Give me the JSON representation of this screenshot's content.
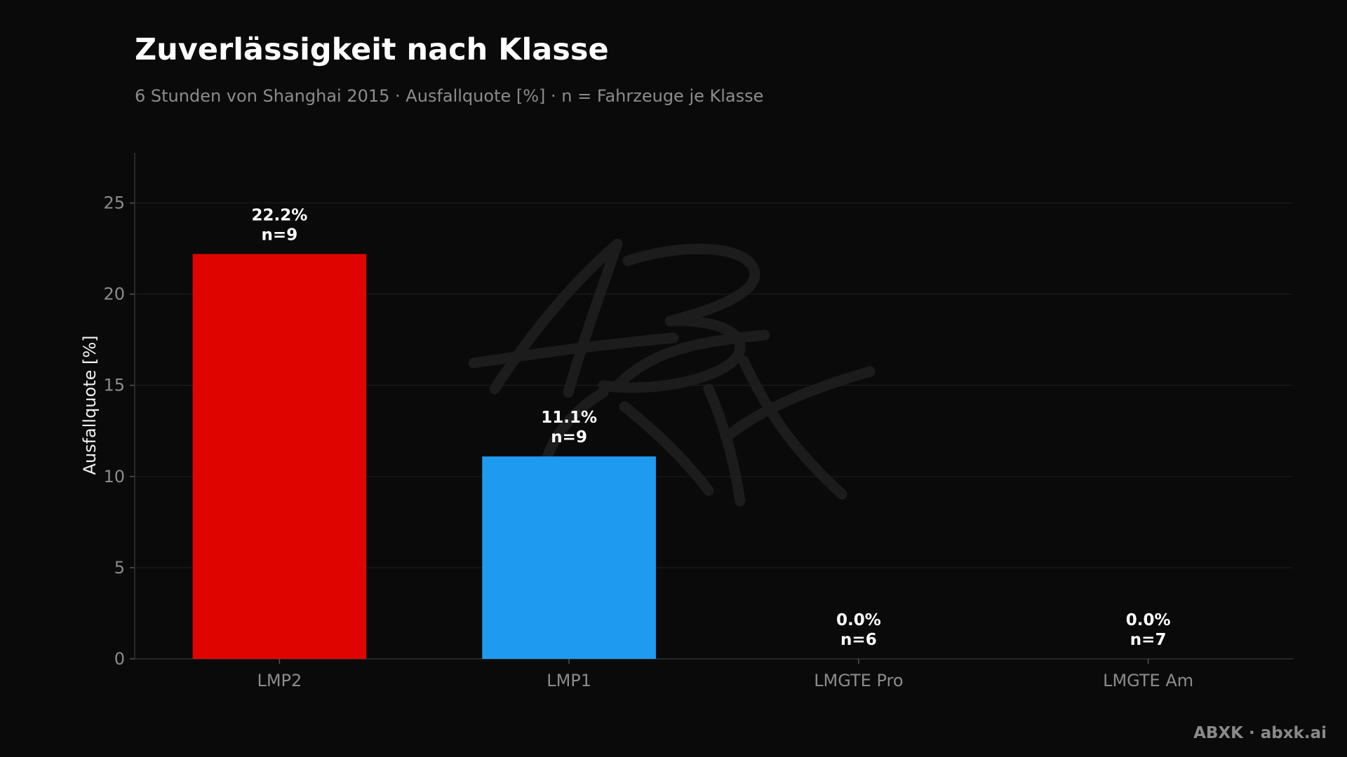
{
  "title": "Zuverlässigkeit nach Klasse",
  "subtitle": "6 Stunden von Shanghai 2015 · Ausfallquote [%] · n = Fahrzeuge je Klasse",
  "footer": "ABXK · abxk.ai",
  "watermark": "ABXK",
  "colors": {
    "background": "#0a0a0a",
    "LMP2": "#e00400",
    "LMP1": "#1e9bf0",
    "grid": "#1f1f1f",
    "axis": "#333333"
  },
  "chart_data": {
    "type": "bar",
    "categories": [
      "LMP2",
      "LMP1",
      "LMGTE Pro",
      "LMGTE Am"
    ],
    "values": [
      22.2,
      11.1,
      0.0,
      0.0
    ],
    "value_labels": [
      "22.2%",
      "11.1%",
      "0.0%",
      "0.0%"
    ],
    "n_labels": [
      "n=9",
      "n=9",
      "n=6",
      "n=7"
    ],
    "bar_colors": [
      "#e00400",
      "#1e9bf0",
      "#1e9bf0",
      "#1e9bf0"
    ],
    "ylabel": "Ausfallquote [%]",
    "xlabel": "",
    "ylim": [
      0,
      27.75
    ],
    "yticks": [
      0,
      5,
      10,
      15,
      20,
      25
    ],
    "grid": true,
    "legend": "none"
  }
}
